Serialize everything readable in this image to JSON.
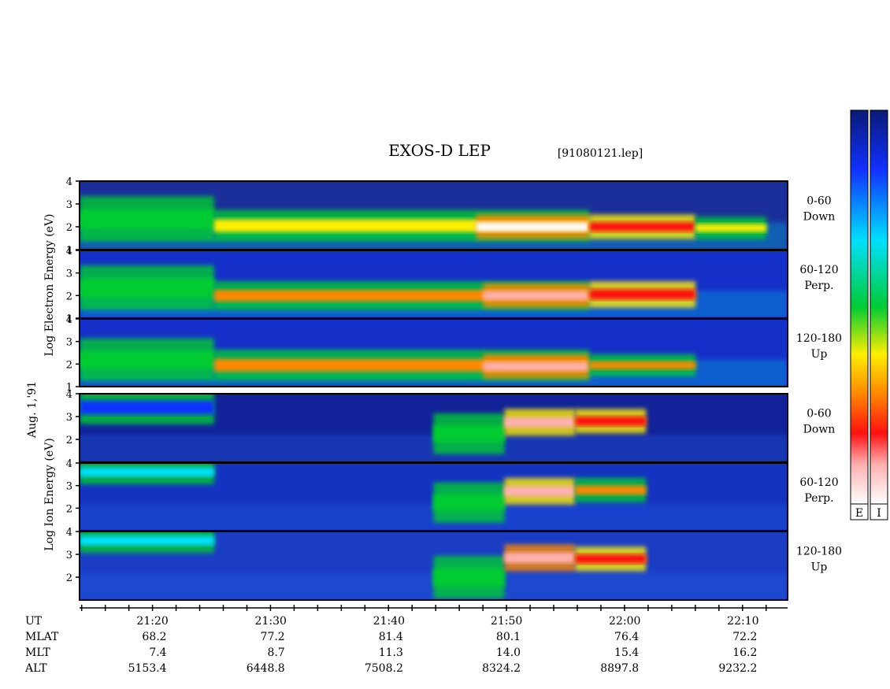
{
  "title": "EXOS-D LEP",
  "file_label": "[91080121.lep]",
  "date_label": "Aug. 1,'91",
  "chart_data": [
    {
      "type": "heatmap",
      "group": "electron",
      "ylabel": "Log Electron Energy (eV)",
      "y_ticks": [
        "1",
        "2",
        "3",
        "4"
      ],
      "panels": [
        {
          "pitch_angle": "0-60",
          "direction": "Down",
          "features": [
            {
              "band_log_e": [
                1.5,
                3.2
              ],
              "t": [
                21.23,
                21.42
              ],
              "level": 0.55
            },
            {
              "band_log_e": [
                1.5,
                2.6
              ],
              "t": [
                21.42,
                21.95
              ],
              "level": 0.7
            },
            {
              "band_log_e": [
                1.6,
                2.4
              ],
              "t": [
                21.79,
                21.95
              ],
              "level": 1.0
            },
            {
              "band_log_e": [
                1.6,
                2.4
              ],
              "t": [
                21.95,
                22.1
              ],
              "level": 0.85
            },
            {
              "band_log_e": [
                1.6,
                2.3
              ],
              "t": [
                22.1,
                22.2
              ],
              "level": 0.65
            }
          ]
        },
        {
          "pitch_angle": "60-120",
          "direction": "Perp.",
          "features": [
            {
              "band_log_e": [
                1.5,
                3.2
              ],
              "t": [
                21.23,
                21.42
              ],
              "level": 0.55
            },
            {
              "band_log_e": [
                1.5,
                2.5
              ],
              "t": [
                21.42,
                21.95
              ],
              "level": 0.72
            },
            {
              "band_log_e": [
                1.6,
                2.4
              ],
              "t": [
                21.8,
                21.95
              ],
              "level": 0.95
            },
            {
              "band_log_e": [
                1.6,
                2.5
              ],
              "t": [
                21.95,
                22.1
              ],
              "level": 0.85
            }
          ]
        },
        {
          "pitch_angle": "120-180",
          "direction": "Up",
          "features": [
            {
              "band_log_e": [
                1.4,
                3.0
              ],
              "t": [
                21.23,
                21.42
              ],
              "level": 0.5
            },
            {
              "band_log_e": [
                1.4,
                2.5
              ],
              "t": [
                21.42,
                21.95
              ],
              "level": 0.72
            },
            {
              "band_log_e": [
                1.5,
                2.3
              ],
              "t": [
                21.8,
                21.95
              ],
              "level": 0.95
            },
            {
              "band_log_e": [
                1.6,
                2.3
              ],
              "t": [
                21.95,
                22.1
              ],
              "level": 0.8
            }
          ]
        }
      ]
    },
    {
      "type": "heatmap",
      "group": "ion",
      "ylabel": "Log Ion Energy (eV)",
      "y_ticks": [
        "2",
        "3",
        "4"
      ],
      "panels": [
        {
          "pitch_angle": "0-60",
          "direction": "Down",
          "features": [
            {
              "band_log_e": [
                2.8,
                4.0
              ],
              "t": [
                21.23,
                21.42
              ],
              "level": 0.3
            },
            {
              "band_log_e": [
                1.5,
                3.0
              ],
              "t": [
                21.73,
                21.83
              ],
              "level": 0.55
            },
            {
              "band_log_e": [
                2.3,
                3.2
              ],
              "t": [
                21.83,
                21.93
              ],
              "level": 0.9
            },
            {
              "band_log_e": [
                2.4,
                3.2
              ],
              "t": [
                21.93,
                22.03
              ],
              "level": 0.85
            }
          ]
        },
        {
          "pitch_angle": "60-120",
          "direction": "Perp.",
          "features": [
            {
              "band_log_e": [
                3.2,
                4.0
              ],
              "t": [
                21.23,
                21.42
              ],
              "level": 0.45
            },
            {
              "band_log_e": [
                1.5,
                3.0
              ],
              "t": [
                21.73,
                21.83
              ],
              "level": 0.55
            },
            {
              "band_log_e": [
                2.3,
                3.2
              ],
              "t": [
                21.83,
                21.93
              ],
              "level": 0.9
            },
            {
              "band_log_e": [
                2.4,
                3.2
              ],
              "t": [
                21.93,
                22.03
              ],
              "level": 0.8
            }
          ]
        },
        {
          "pitch_angle": "120-180",
          "direction": "Up",
          "features": [
            {
              "band_log_e": [
                3.2,
                4.0
              ],
              "t": [
                21.23,
                21.42
              ],
              "level": 0.35
            },
            {
              "band_log_e": [
                1.2,
                2.8
              ],
              "t": [
                21.73,
                21.83
              ],
              "level": 0.6
            },
            {
              "band_log_e": [
                2.4,
                3.3
              ],
              "t": [
                21.83,
                21.93
              ],
              "level": 0.95
            },
            {
              "band_log_e": [
                2.4,
                3.2
              ],
              "t": [
                21.93,
                22.03
              ],
              "level": 0.85
            }
          ]
        }
      ]
    }
  ],
  "ut_range": [
    21.23,
    22.23
  ],
  "time_axis": {
    "row_labels": [
      "UT",
      "MLAT",
      "MLT",
      "ALT"
    ],
    "columns": [
      {
        "UT": "21:20",
        "MLAT": "68.2",
        "MLT": "7.4",
        "ALT": "5153.4",
        "t": 21.333
      },
      {
        "UT": "21:30",
        "MLAT": "77.2",
        "MLT": "8.7",
        "ALT": "6448.8",
        "t": 21.5
      },
      {
        "UT": "21:40",
        "MLAT": "81.4",
        "MLT": "11.3",
        "ALT": "7508.2",
        "t": 21.667
      },
      {
        "UT": "21:50",
        "MLAT": "80.1",
        "MLT": "14.0",
        "ALT": "8324.2",
        "t": 21.833
      },
      {
        "UT": "22:00",
        "MLAT": "76.4",
        "MLT": "15.4",
        "ALT": "8897.8",
        "t": 22.0
      },
      {
        "UT": "22:10",
        "MLAT": "72.2",
        "MLT": "16.2",
        "ALT": "9232.2",
        "t": 22.167
      }
    ]
  },
  "colorbars": [
    {
      "label": "E",
      "colors_top_to_bottom": [
        "#0a1a78",
        "#1030ff",
        "#00e0ff",
        "#00cc33",
        "#ffee00",
        "#ff8800",
        "#ff1010",
        "#ffffff"
      ]
    },
    {
      "label": "I",
      "colors_top_to_bottom": [
        "#0a1a78",
        "#1030ff",
        "#00e0ff",
        "#00cc33",
        "#ffee00",
        "#ff8800",
        "#ff1010",
        "#ffffff"
      ]
    }
  ]
}
